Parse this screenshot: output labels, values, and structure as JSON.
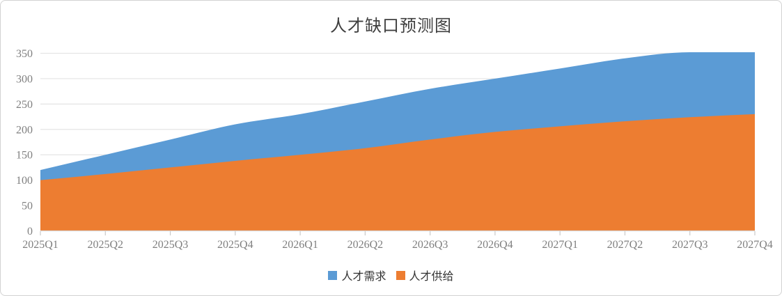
{
  "chart_data": {
    "type": "area",
    "title": "人才缺口预测图",
    "categories": [
      "2025Q1",
      "2025Q2",
      "2025Q3",
      "2025Q4",
      "2026Q1",
      "2026Q2",
      "2026Q3",
      "2026Q4",
      "2027Q1",
      "2027Q2",
      "2027Q3",
      "2027Q4"
    ],
    "series": [
      {
        "name": "人才需求",
        "color": "#5B9BD5",
        "values": [
          120,
          150,
          180,
          210,
          230,
          255,
          280,
          300,
          320,
          340,
          352,
          352
        ]
      },
      {
        "name": "人才供给",
        "color": "#ED7D31",
        "values": [
          100,
          112,
          125,
          138,
          150,
          163,
          180,
          195,
          206,
          216,
          224,
          230
        ]
      }
    ],
    "ylim": [
      0,
      350
    ],
    "ytick_step": 50,
    "ytick_labels": [
      "0",
      "50",
      "100",
      "150",
      "200",
      "250",
      "300",
      "350"
    ],
    "grid": "horizontal",
    "smooth": true,
    "legend_position": "bottom",
    "overlap_note": "series overlap (not stacked); orange drawn over blue, visible blue band = talent gap",
    "colors": {
      "grid_line": "#e4e4e4",
      "axis_line": "#d9d9d9",
      "tick_mark": "#c9c9c9",
      "axis_text": "#7f7f7f",
      "title_text": "#3f3f3f",
      "legend_text": "#333333",
      "card_border": "#d2d2d2",
      "background": "#ffffff"
    }
  }
}
